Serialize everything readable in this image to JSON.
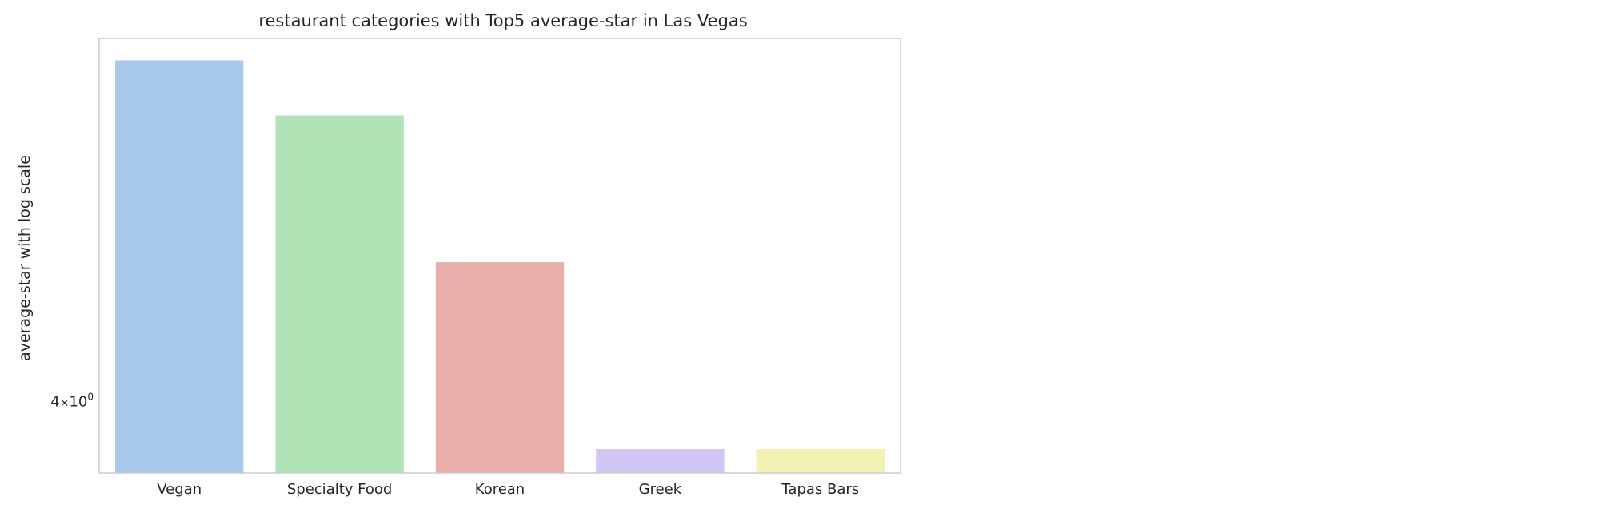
{
  "chart_data": {
    "type": "bar",
    "title": "restaurant categories with Top5 average-star in Las Vegas",
    "xlabel": "",
    "ylabel": "average-star with log scale",
    "yscale": "log",
    "grid": false,
    "categories": [
      "Vegan",
      "Specialty Food",
      "Korean",
      "Greek",
      "Tapas Bars"
    ],
    "values": [
      4.3,
      4.25,
      4.12,
      3.96,
      3.96
    ],
    "colors": [
      "#a1c9f4",
      "#8de5a1",
      "#ff9f9b",
      "#d0bbff",
      "#fffea3"
    ],
    "bar_colors_rendered": [
      "#a8c8ec",
      "#b0e3b5",
      "#e7aeaa",
      "#d1c5f4",
      "#f3f1b4"
    ],
    "ylim": [
      3.94,
      4.32
    ],
    "yticks": [
      {
        "value": 4,
        "base": "4",
        "times": "×",
        "ten": "10",
        "exp": "0"
      }
    ]
  }
}
